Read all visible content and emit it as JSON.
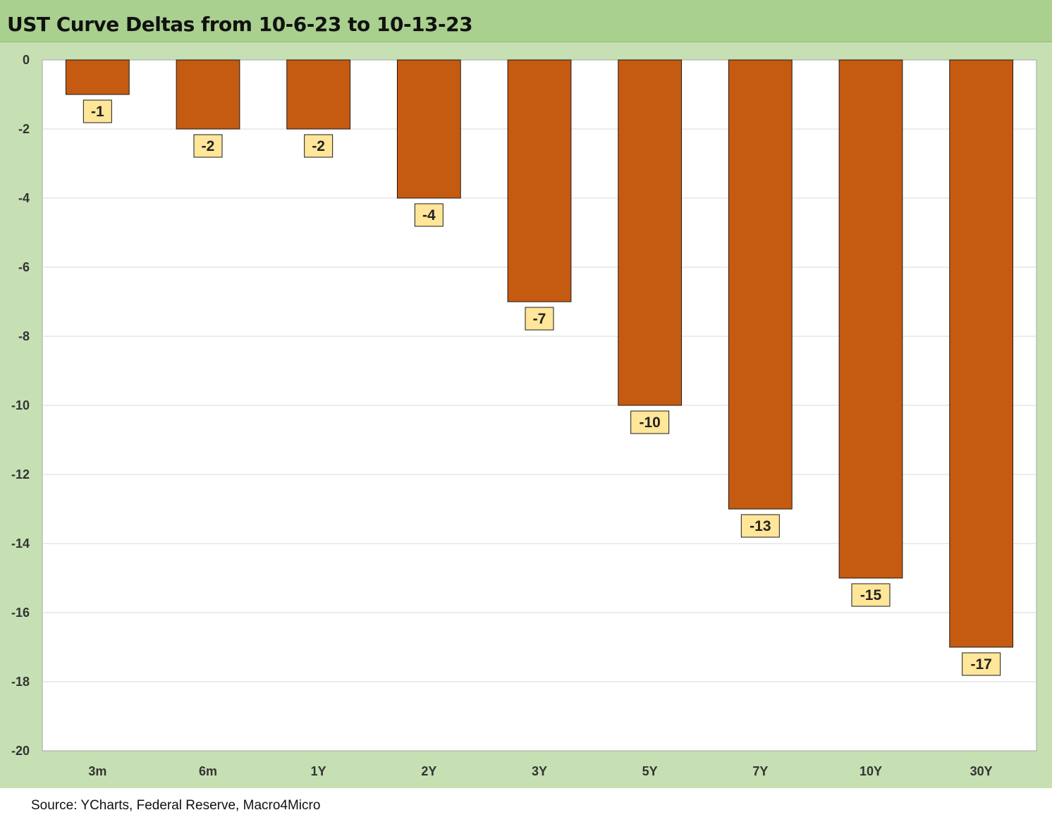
{
  "title": "UST Curve Deltas from 10-6-23 to 10-13-23",
  "source": "Source: YCharts, Federal Reserve, Macro4Micro",
  "colors": {
    "title_bg": "#a9d08e",
    "chart_bg": "#c6e0b4",
    "plot_bg": "#ffffff",
    "bar": "#c55a11",
    "label_bg": "#ffe699"
  },
  "chart_data": {
    "type": "bar",
    "categories": [
      "3m",
      "6m",
      "1Y",
      "2Y",
      "3Y",
      "5Y",
      "7Y",
      "10Y",
      "30Y"
    ],
    "values": [
      -1,
      -2,
      -2,
      -4,
      -7,
      -10,
      -13,
      -15,
      -17
    ],
    "data_labels": [
      "-1",
      "-2",
      "-2",
      "-4",
      "-7",
      "-10",
      "-13",
      "-15",
      "-17"
    ],
    "ylim": [
      -20,
      0
    ],
    "y_ticks": [
      0,
      -2,
      -4,
      -6,
      -8,
      -10,
      -12,
      -14,
      -16,
      -18,
      -20
    ],
    "grid": true,
    "legend": "none",
    "xlabel": "",
    "ylabel": ""
  }
}
